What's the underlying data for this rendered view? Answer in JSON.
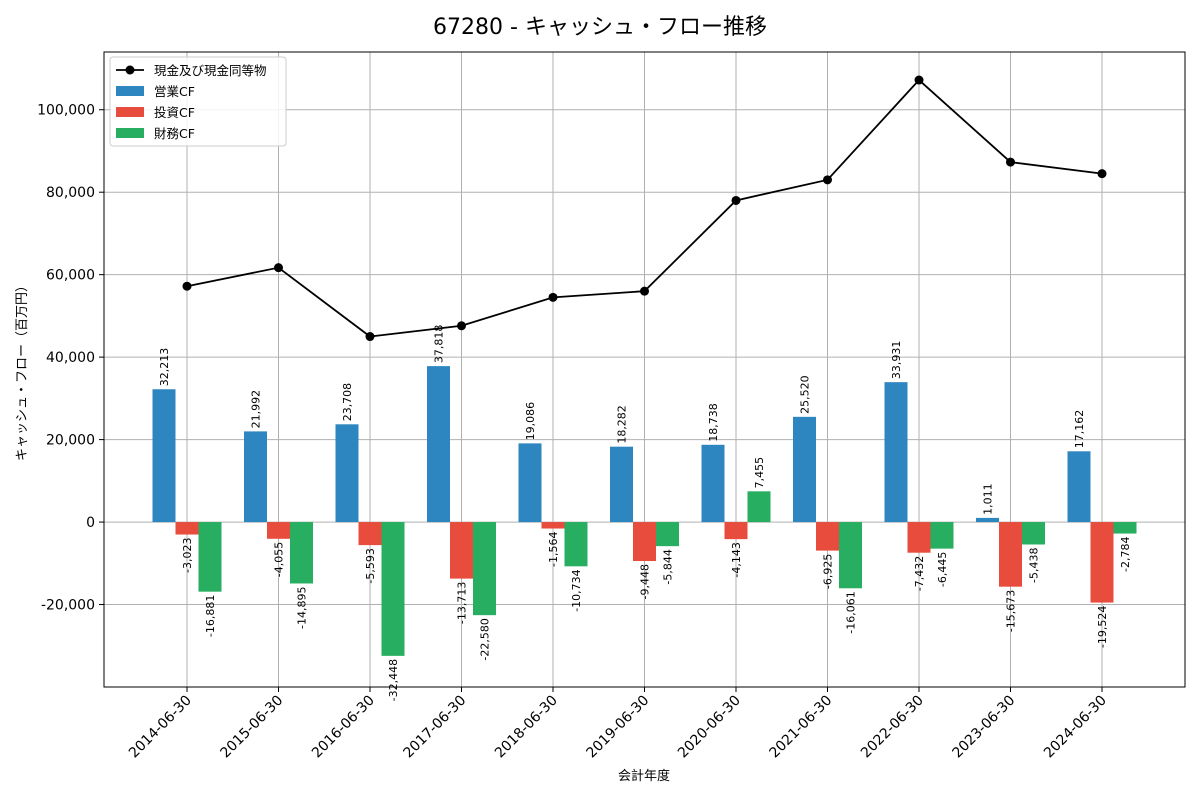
{
  "chart_data": {
    "type": "bar",
    "title": "67280 - キャッシュ・フロー推移",
    "xlabel": "会計年度",
    "ylabel": "キャッシュ・フロー（百万円）",
    "ylim": [
      -40000,
      114000
    ],
    "yticks": [
      -20000,
      0,
      20000,
      40000,
      60000,
      80000,
      100000
    ],
    "ytick_labels": [
      "-20,000",
      "0",
      "20,000",
      "40,000",
      "60,000",
      "80,000",
      "100,000"
    ],
    "grid": true,
    "legend_position": "top-left",
    "categories": [
      "2014-06-30",
      "2015-06-30",
      "2016-06-30",
      "2017-06-30",
      "2018-06-30",
      "2019-06-30",
      "2020-06-30",
      "2021-06-30",
      "2022-06-30",
      "2023-06-30",
      "2024-06-30"
    ],
    "series": [
      {
        "name": "営業CF",
        "type": "bar",
        "color": "#2e86c1",
        "values": [
          32213,
          21992,
          23708,
          37818,
          19086,
          18282,
          18738,
          25520,
          33931,
          1011,
          17162
        ],
        "labels": [
          "32,213",
          "21,992",
          "23,708",
          "37,818",
          "19,086",
          "18,282",
          "18,738",
          "25,520",
          "33,931",
          "1,011",
          "17,162"
        ]
      },
      {
        "name": "投資CF",
        "type": "bar",
        "color": "#e74c3c",
        "values": [
          -3023,
          -4055,
          -5593,
          -13713,
          -1564,
          -9448,
          -4143,
          -6925,
          -7432,
          -15673,
          -19524
        ],
        "labels": [
          "-3,023",
          "-4,055",
          "-5,593",
          "-13,713",
          "-1,564",
          "-9,448",
          "-4,143",
          "-6,925",
          "-7,432",
          "-15,673",
          "-19,524"
        ]
      },
      {
        "name": "財務CF",
        "type": "bar",
        "color": "#27ae60",
        "values": [
          -16881,
          -14895,
          -32448,
          -22580,
          -10734,
          -5844,
          7455,
          -16061,
          -6445,
          -5438,
          -2784
        ],
        "labels": [
          "-16,881",
          "-14,895",
          "-32,448",
          "-22,580",
          "-10,734",
          "-5,844",
          "7,455",
          "-16,061",
          "-6,445",
          "-5,438",
          "-2,784"
        ]
      },
      {
        "name": "現金及び現金同等物",
        "type": "line",
        "color": "#000000",
        "values": [
          57200,
          61700,
          45000,
          47600,
          54500,
          56000,
          78000,
          83000,
          107200,
          87300,
          84500
        ]
      }
    ]
  }
}
